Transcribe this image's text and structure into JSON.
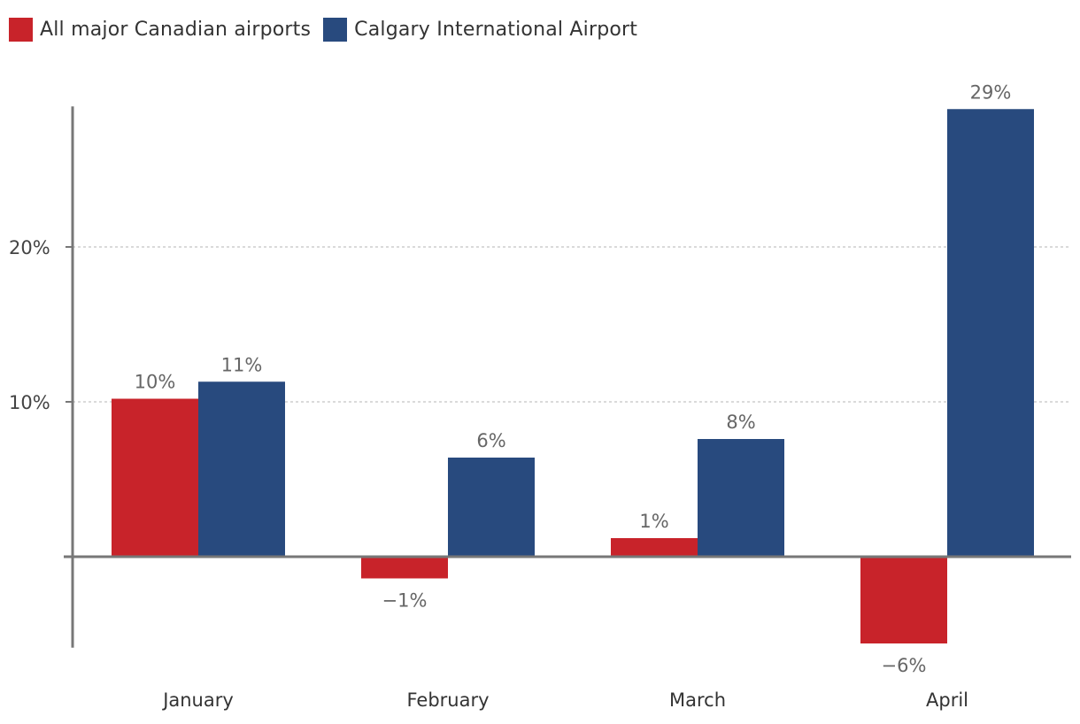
{
  "chart_data": {
    "type": "bar",
    "categories": [
      "January",
      "February",
      "March",
      "April"
    ],
    "series": [
      {
        "name": "All major Canadian airports",
        "color": "#c8232a",
        "values": [
          10.2,
          -1.4,
          1.2,
          -5.6
        ],
        "labels": [
          "10%",
          "−1%",
          "1%",
          "−6%"
        ]
      },
      {
        "name": "Calgary International Airport",
        "color": "#284a7e",
        "values": [
          11.3,
          6.4,
          7.6,
          28.9
        ],
        "labels": [
          "11%",
          "6%",
          "8%",
          "29%"
        ]
      }
    ],
    "yticks": [
      {
        "value": 10,
        "label": "10%"
      },
      {
        "value": 20,
        "label": "20%"
      }
    ],
    "ylim": [
      -5.7,
      28.9
    ],
    "grid": true,
    "legend_position": "top-left",
    "title": "",
    "xlabel": "",
    "ylabel": ""
  }
}
